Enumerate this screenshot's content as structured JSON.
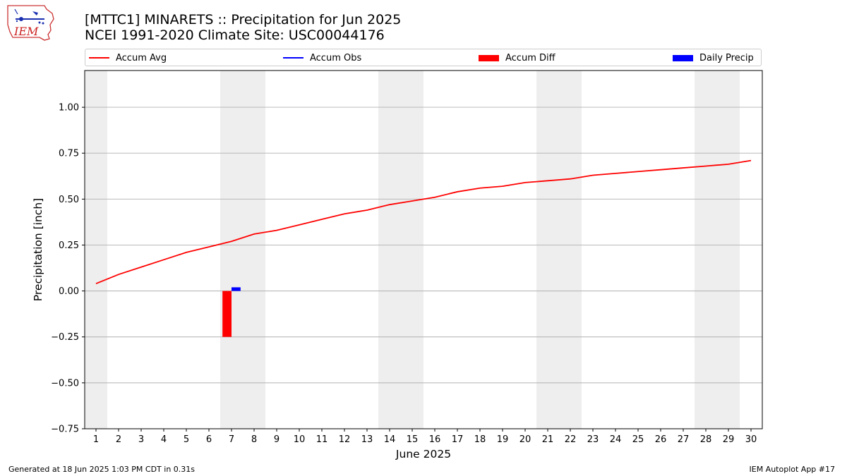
{
  "header": {
    "title_line1": "[MTTC1] MINARETS :: Precipitation for Jun 2025",
    "title_line2": "NCEI 1991-2020 Climate Site: USC00044176"
  },
  "logo": {
    "text": "IEM",
    "icon": "iem-iowa-logo"
  },
  "footer": {
    "generated": "Generated at 18 Jun 2025 1:03 PM CDT in 0.31s",
    "app": "IEM Autoplot App #17"
  },
  "colors": {
    "accum_avg": "#ff0000",
    "accum_obs": "#0000ff",
    "accum_diff": "#ff0000",
    "daily_precip": "#0000ff",
    "weekend_shade": "#eeeeee",
    "grid": "#b0b0b0"
  },
  "chart_data": {
    "type": "bar+line",
    "xlabel": "June 2025",
    "ylabel": "Precipitation [inch]",
    "ylim": [
      -0.75,
      1.2
    ],
    "xlim": [
      0.5,
      30.5
    ],
    "grid": "horizontal",
    "legend_position": "top",
    "yticks": [
      -0.75,
      -0.5,
      -0.25,
      0.0,
      0.25,
      0.5,
      0.75,
      1.0
    ],
    "ytick_labels": [
      "−0.75",
      "−0.50",
      "−0.25",
      "0.00",
      "0.25",
      "0.50",
      "0.75",
      "1.00"
    ],
    "days": [
      1,
      2,
      3,
      4,
      5,
      6,
      7,
      8,
      9,
      10,
      11,
      12,
      13,
      14,
      15,
      16,
      17,
      18,
      19,
      20,
      21,
      22,
      23,
      24,
      25,
      26,
      27,
      28,
      29,
      30
    ],
    "weekend_spans": [
      [
        0.5,
        1.5
      ],
      [
        6.5,
        8.5
      ],
      [
        13.5,
        15.5
      ],
      [
        20.5,
        22.5
      ],
      [
        27.5,
        29.5
      ]
    ],
    "legend": [
      "Accum Avg",
      "Accum Obs",
      "Accum Diff",
      "Daily Precip"
    ],
    "series": [
      {
        "name": "Accum Avg",
        "kind": "line",
        "x": [
          1,
          2,
          3,
          4,
          5,
          6,
          7,
          8,
          9,
          10,
          11,
          12,
          13,
          14,
          15,
          16,
          17,
          18,
          19,
          20,
          21,
          22,
          23,
          24,
          25,
          26,
          27,
          28,
          29,
          30
        ],
        "values": [
          0.04,
          0.09,
          0.13,
          0.17,
          0.21,
          0.24,
          0.27,
          0.31,
          0.33,
          0.36,
          0.39,
          0.42,
          0.44,
          0.47,
          0.49,
          0.51,
          0.54,
          0.56,
          0.57,
          0.59,
          0.6,
          0.61,
          0.63,
          0.64,
          0.65,
          0.66,
          0.67,
          0.68,
          0.69,
          0.71
        ]
      },
      {
        "name": "Accum Obs",
        "kind": "line",
        "x": [],
        "values": []
      },
      {
        "name": "Accum Diff",
        "kind": "bar",
        "x": [
          7
        ],
        "values": [
          -0.25
        ]
      },
      {
        "name": "Daily Precip",
        "kind": "bar",
        "x": [
          7
        ],
        "values": [
          0.02
        ]
      }
    ]
  }
}
